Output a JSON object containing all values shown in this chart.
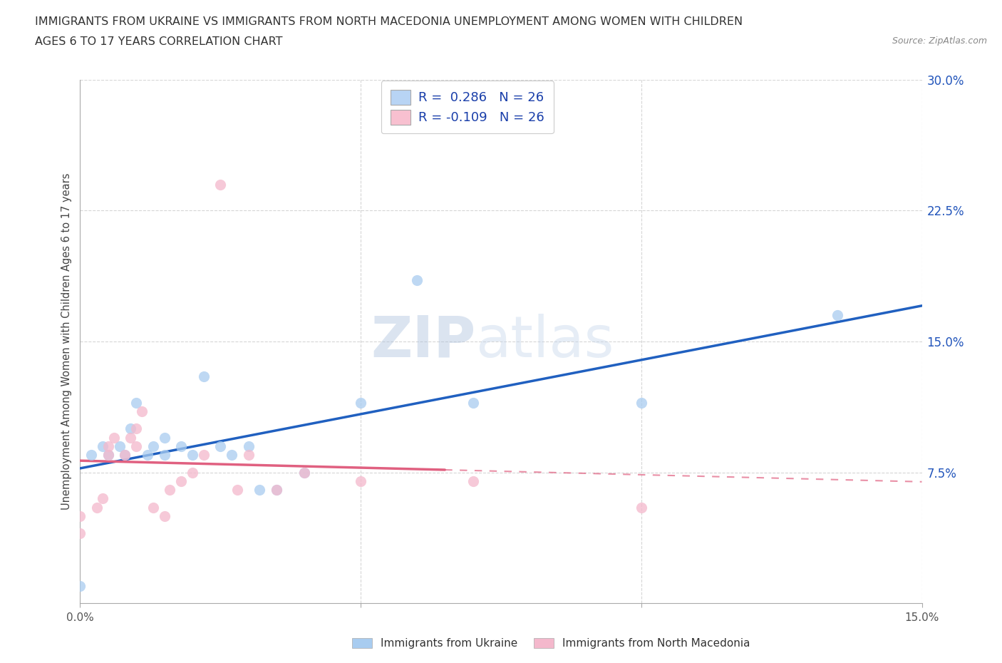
{
  "title_line1": "IMMIGRANTS FROM UKRAINE VS IMMIGRANTS FROM NORTH MACEDONIA UNEMPLOYMENT AMONG WOMEN WITH CHILDREN",
  "title_line2": "AGES 6 TO 17 YEARS CORRELATION CHART",
  "source_text": "Source: ZipAtlas.com",
  "ylabel": "Unemployment Among Women with Children Ages 6 to 17 years",
  "xlim": [
    0.0,
    0.15
  ],
  "ylim": [
    0.0,
    0.3
  ],
  "ytick_positions": [
    0.075,
    0.15,
    0.225,
    0.3
  ],
  "ytick_labels_right": [
    "7.5%",
    "15.0%",
    "22.5%",
    "30.0%"
  ],
  "xtick_positions": [
    0.0,
    0.05,
    0.1,
    0.15
  ],
  "xtick_labels": [
    "0.0%",
    "",
    "",
    "15.0%"
  ],
  "ukraine_scatter_color": "#a8ccf0",
  "macedonia_scatter_color": "#f4b8cc",
  "ukraine_line_color": "#2060c0",
  "macedonia_line_color": "#e06080",
  "legend_patch_ukraine": "#b8d4f4",
  "legend_patch_macedonia": "#f8c0d0",
  "grid_color": "#cccccc",
  "watermark_color": "#ccd8e8",
  "background_color": "#ffffff",
  "right_tick_color": "#2255bb",
  "ukraine_x": [
    0.0,
    0.002,
    0.004,
    0.005,
    0.007,
    0.008,
    0.009,
    0.01,
    0.012,
    0.013,
    0.015,
    0.015,
    0.018,
    0.02,
    0.022,
    0.025,
    0.027,
    0.03,
    0.032,
    0.035,
    0.04,
    0.05,
    0.06,
    0.07,
    0.1,
    0.135
  ],
  "ukraine_y": [
    0.01,
    0.085,
    0.09,
    0.085,
    0.09,
    0.085,
    0.1,
    0.115,
    0.085,
    0.09,
    0.085,
    0.095,
    0.09,
    0.085,
    0.13,
    0.09,
    0.085,
    0.09,
    0.065,
    0.065,
    0.075,
    0.115,
    0.185,
    0.115,
    0.115,
    0.165
  ],
  "macedonia_x": [
    0.0,
    0.0,
    0.003,
    0.004,
    0.005,
    0.005,
    0.006,
    0.008,
    0.009,
    0.01,
    0.01,
    0.011,
    0.013,
    0.015,
    0.016,
    0.018,
    0.02,
    0.022,
    0.025,
    0.028,
    0.03,
    0.035,
    0.04,
    0.05,
    0.07,
    0.1
  ],
  "macedonia_y": [
    0.04,
    0.05,
    0.055,
    0.06,
    0.085,
    0.09,
    0.095,
    0.085,
    0.095,
    0.09,
    0.1,
    0.11,
    0.055,
    0.05,
    0.065,
    0.07,
    0.075,
    0.085,
    0.24,
    0.065,
    0.085,
    0.065,
    0.075,
    0.07,
    0.07,
    0.055
  ],
  "scatter_size": 120,
  "scatter_alpha": 0.75
}
